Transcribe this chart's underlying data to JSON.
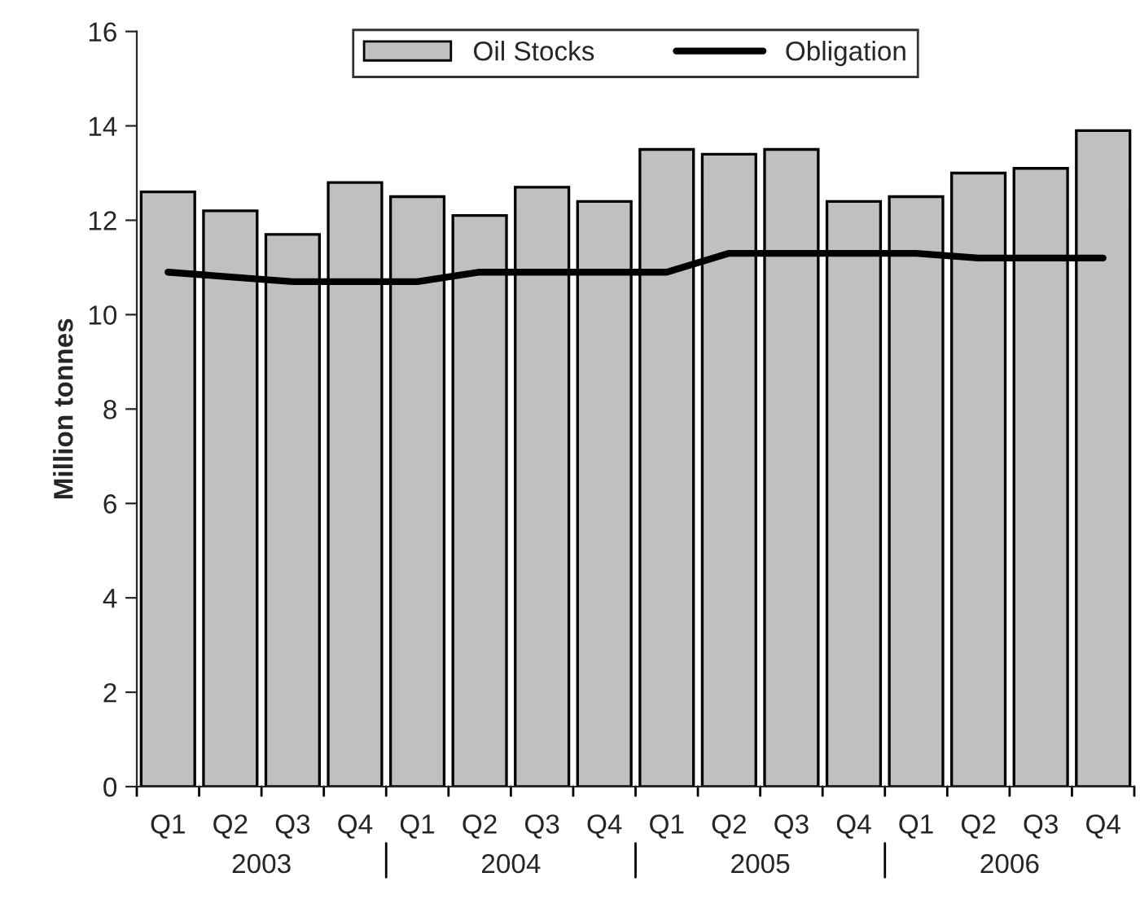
{
  "chart_data": {
    "type": "bar",
    "ylabel": "Million tonnes",
    "categories": [
      "Q1",
      "Q2",
      "Q3",
      "Q4",
      "Q1",
      "Q2",
      "Q3",
      "Q4",
      "Q1",
      "Q2",
      "Q3",
      "Q4",
      "Q1",
      "Q2",
      "Q3",
      "Q4"
    ],
    "series": [
      {
        "name": "Oil Stocks",
        "color": "#c0c0c0",
        "values": [
          12.6,
          12.2,
          11.7,
          12.8,
          12.5,
          12.1,
          12.7,
          12.4,
          13.5,
          13.4,
          13.5,
          12.4,
          12.5,
          13.0,
          13.1,
          13.9
        ]
      },
      {
        "name": "Obligation",
        "type": "line",
        "color": "#000000",
        "values": [
          10.9,
          10.8,
          10.7,
          10.7,
          10.7,
          10.9,
          10.9,
          10.9,
          10.9,
          11.3,
          11.3,
          11.3,
          11.3,
          11.2,
          11.2,
          11.2
        ]
      }
    ],
    "annotations": [
      "2003",
      "2004",
      "2005",
      "2006"
    ],
    "ylim": [
      0,
      16
    ],
    "yticks": [
      0,
      2,
      4,
      6,
      8,
      10,
      12,
      14,
      16
    ],
    "grid": false,
    "legend": "top",
    "marker": "none",
    "line_style": "solid"
  }
}
